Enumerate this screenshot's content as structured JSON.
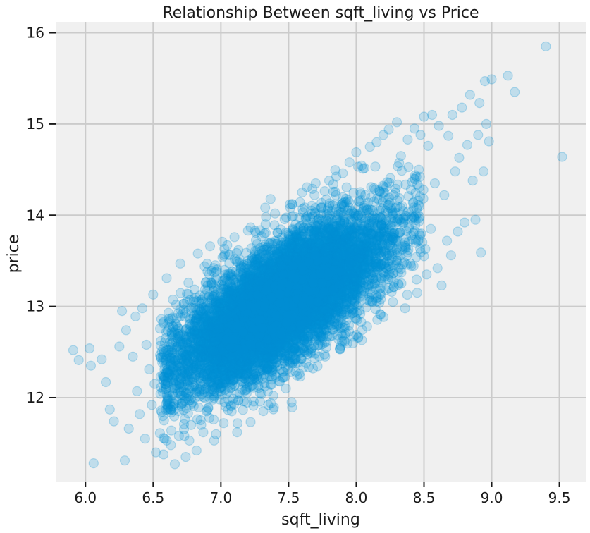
{
  "chart_data": {
    "type": "scatter",
    "title": "Relationship Between sqft_living vs Price",
    "xlabel": "sqft_living",
    "ylabel": "price",
    "xlim": [
      5.78,
      9.7
    ],
    "ylim": [
      11.08,
      16.12
    ],
    "xticks": [
      6.0,
      6.5,
      7.0,
      7.5,
      8.0,
      8.5,
      9.0,
      9.5
    ],
    "yticks": [
      12,
      13,
      14,
      15,
      16
    ],
    "xtick_labels": [
      "6.0",
      "6.5",
      "7.0",
      "7.5",
      "8.0",
      "8.5",
      "9.0",
      "9.5"
    ],
    "ytick_labels": [
      "12",
      "13",
      "14",
      "15",
      "16"
    ],
    "grid": true,
    "background": "#f0f0f0",
    "point_color": "#008fd5",
    "series": [
      {
        "points": [
          [
            5.91,
            12.52
          ],
          [
            5.95,
            12.41
          ],
          [
            6.03,
            12.54
          ],
          [
            6.04,
            12.35
          ],
          [
            6.06,
            11.28
          ],
          [
            6.12,
            12.42
          ],
          [
            6.15,
            12.17
          ],
          [
            6.18,
            11.87
          ],
          [
            6.21,
            11.74
          ],
          [
            6.25,
            12.56
          ],
          [
            6.27,
            12.95
          ],
          [
            6.29,
            11.31
          ],
          [
            6.3,
            12.74
          ],
          [
            6.32,
            11.66
          ],
          [
            6.35,
            12.45
          ],
          [
            6.37,
            12.89
          ],
          [
            6.38,
            12.07
          ],
          [
            6.4,
            11.82
          ],
          [
            6.42,
            12.98
          ],
          [
            6.44,
            11.55
          ],
          [
            6.45,
            12.58
          ],
          [
            6.47,
            12.31
          ],
          [
            6.49,
            11.92
          ],
          [
            6.5,
            13.13
          ],
          [
            6.51,
            12.15
          ],
          [
            6.52,
            11.4
          ],
          [
            6.55,
            11.61
          ],
          [
            6.56,
            12.86
          ],
          [
            6.58,
            11.75
          ],
          [
            6.6,
            13.31
          ],
          [
            6.61,
            12.22
          ],
          [
            6.63,
            11.48
          ],
          [
            6.64,
            12.69
          ],
          [
            6.66,
            11.27
          ],
          [
            6.67,
            13.02
          ],
          [
            6.69,
            11.58
          ],
          [
            6.7,
            13.47
          ],
          [
            6.71,
            11.93
          ],
          [
            6.72,
            12.5
          ],
          [
            6.74,
            11.35
          ],
          [
            6.76,
            13.26
          ],
          [
            6.78,
            11.7
          ],
          [
            6.8,
            12.84
          ],
          [
            6.82,
            11.42
          ],
          [
            6.83,
            13.58
          ],
          [
            6.85,
            12.15
          ],
          [
            6.87,
            11.62
          ],
          [
            6.88,
            13.12
          ],
          [
            6.9,
            11.86
          ],
          [
            6.92,
            13.66
          ],
          [
            6.95,
            11.53
          ],
          [
            6.97,
            12.42
          ],
          [
            6.99,
            11.98
          ],
          [
            7.01,
            13.71
          ],
          [
            7.02,
            11.72
          ],
          [
            7.05,
            12.91
          ],
          [
            7.08,
            11.85
          ],
          [
            7.1,
            13.76
          ],
          [
            7.12,
            11.62
          ],
          [
            7.15,
            12.28
          ],
          [
            7.17,
            11.96
          ],
          [
            7.2,
            13.83
          ],
          [
            7.22,
            12.58
          ],
          [
            7.24,
            11.91
          ],
          [
            7.27,
            13.62
          ],
          [
            7.3,
            12.04
          ],
          [
            7.33,
            13.9
          ],
          [
            7.35,
            11.92
          ],
          [
            7.38,
            12.76
          ],
          [
            7.4,
            14.02
          ],
          [
            7.43,
            12.18
          ],
          [
            7.46,
            13.35
          ],
          [
            7.48,
            12.1
          ],
          [
            7.51,
            14.12
          ],
          [
            7.53,
            12.42
          ],
          [
            7.55,
            13.82
          ],
          [
            7.58,
            12.26
          ],
          [
            7.6,
            14.25
          ],
          [
            7.63,
            12.38
          ],
          [
            7.66,
            13.97
          ],
          [
            7.68,
            12.32
          ],
          [
            7.7,
            14.35
          ],
          [
            7.72,
            12.58
          ],
          [
            7.74,
            14.08
          ],
          [
            7.77,
            12.45
          ],
          [
            7.8,
            14.38
          ],
          [
            7.82,
            12.68
          ],
          [
            7.85,
            14.22
          ],
          [
            7.88,
            12.53
          ],
          [
            7.9,
            14.46
          ],
          [
            7.93,
            12.85
          ],
          [
            7.95,
            14.58
          ],
          [
            7.98,
            12.67
          ],
          [
            8.0,
            14.69
          ],
          [
            8.03,
            12.92
          ],
          [
            8.05,
            14.51
          ],
          [
            8.08,
            12.78
          ],
          [
            8.1,
            14.75
          ],
          [
            8.12,
            13.06
          ],
          [
            8.15,
            14.8
          ],
          [
            8.18,
            12.91
          ],
          [
            8.2,
            14.88
          ],
          [
            8.22,
            13.18
          ],
          [
            8.24,
            14.94
          ],
          [
            8.27,
            13.05
          ],
          [
            8.3,
            15.02
          ],
          [
            8.31,
            13.25
          ],
          [
            8.33,
            14.65
          ],
          [
            8.36,
            12.98
          ],
          [
            8.38,
            14.83
          ],
          [
            8.4,
            13.47
          ],
          [
            8.43,
            14.95
          ],
          [
            8.45,
            13.15
          ],
          [
            8.47,
            14.42
          ],
          [
            8.5,
            15.08
          ],
          [
            8.51,
            13.63
          ],
          [
            8.52,
            13.35
          ],
          [
            8.53,
            14.76
          ],
          [
            8.55,
            13.85
          ],
          [
            8.56,
            15.1
          ],
          [
            8.58,
            14.35
          ],
          [
            8.6,
            13.42
          ],
          [
            8.61,
            14.98
          ],
          [
            8.63,
            13.23
          ],
          [
            8.65,
            14.22
          ],
          [
            8.67,
            13.72
          ],
          [
            8.68,
            14.87
          ],
          [
            8.7,
            13.56
          ],
          [
            8.71,
            15.1
          ],
          [
            8.73,
            14.48
          ],
          [
            8.75,
            13.82
          ],
          [
            8.76,
            14.63
          ],
          [
            8.78,
            15.18
          ],
          [
            8.8,
            13.92
          ],
          [
            8.82,
            14.77
          ],
          [
            8.84,
            15.32
          ],
          [
            8.86,
            14.38
          ],
          [
            8.88,
            13.95
          ],
          [
            8.9,
            14.88
          ],
          [
            8.91,
            15.23
          ],
          [
            8.92,
            13.59
          ],
          [
            8.94,
            14.48
          ],
          [
            8.95,
            15.47
          ],
          [
            8.96,
            15.0
          ],
          [
            8.98,
            14.81
          ],
          [
            9.0,
            15.49
          ],
          [
            9.12,
            15.53
          ],
          [
            9.17,
            15.35
          ],
          [
            9.4,
            15.85
          ],
          [
            9.52,
            14.64
          ]
        ],
        "cloud": {
          "n": 9000,
          "center": [
            7.45,
            13.05
          ],
          "x_sd": 0.38,
          "y_sd_resid": 0.32,
          "slope": 0.86
        }
      }
    ]
  }
}
